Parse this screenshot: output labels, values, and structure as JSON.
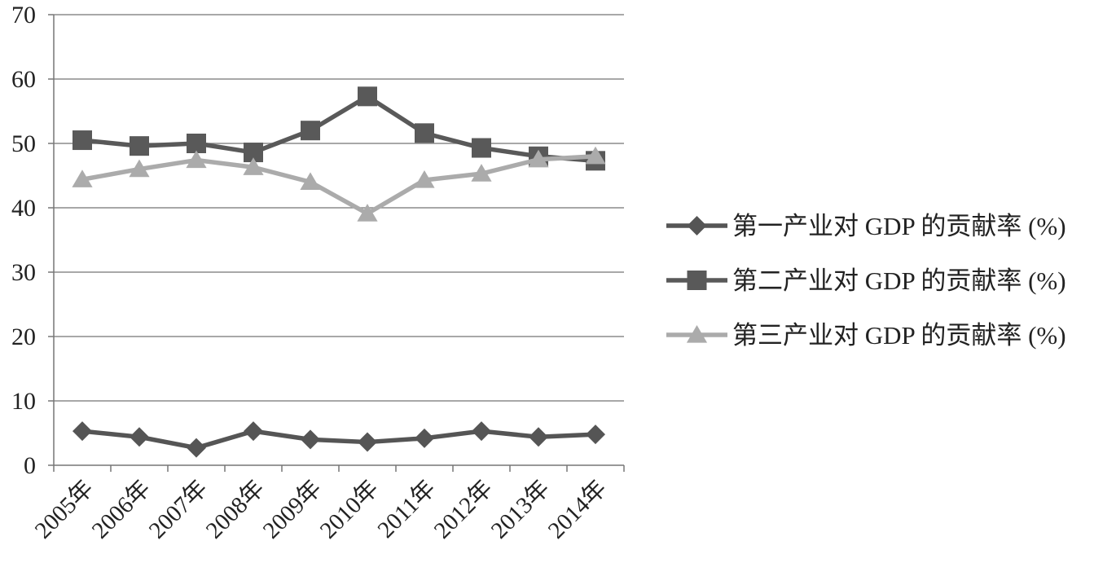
{
  "chart_data": {
    "type": "line",
    "categories": [
      "2005年",
      "2006年",
      "2007年",
      "2008年",
      "2009年",
      "2010年",
      "2011年",
      "2012年",
      "2013年",
      "2014年"
    ],
    "series": [
      {
        "name": "第一产业对 GDP 的贡献率 (%)",
        "marker": "diamond",
        "color": "#555555",
        "values": [
          5.3,
          4.4,
          2.7,
          5.3,
          4.0,
          3.6,
          4.2,
          5.3,
          4.4,
          4.8
        ]
      },
      {
        "name": "第二产业对 GDP 的贡献率 (%)",
        "marker": "square",
        "color": "#595959",
        "values": [
          50.5,
          49.6,
          50.0,
          48.6,
          52.0,
          57.3,
          51.6,
          49.3,
          48.0,
          47.3
        ]
      },
      {
        "name": "第三产业对 GDP 的贡献率 (%)",
        "marker": "triangle",
        "color": "#ababab",
        "values": [
          44.4,
          46.0,
          47.4,
          46.3,
          44.0,
          39.1,
          44.3,
          45.3,
          47.5,
          48.0
        ]
      }
    ],
    "yticks": [
      "0",
      "10",
      "20",
      "30",
      "40",
      "50",
      "60",
      "70"
    ],
    "ylim": [
      0,
      70
    ],
    "grid": true,
    "legend": "right"
  }
}
